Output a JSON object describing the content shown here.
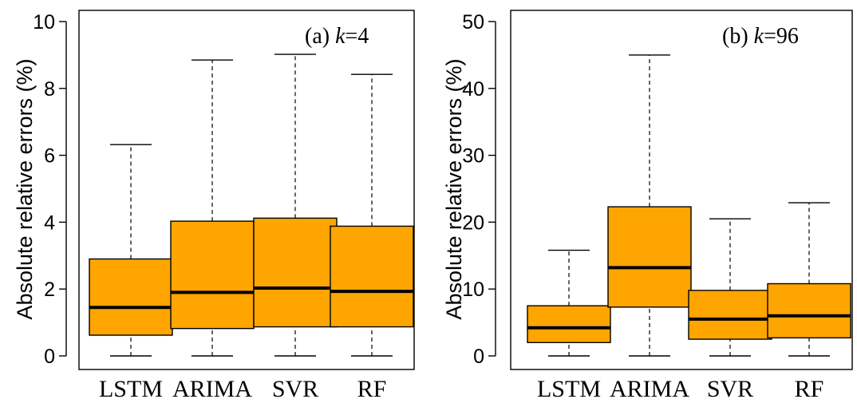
{
  "chart_data": [
    {
      "type": "box",
      "title_prefix": "(a)",
      "title_var": "k",
      "title_value": "=4",
      "ylabel": "Absolute relative errors (%)",
      "ylim": [
        0,
        10
      ],
      "yticks": [
        "0",
        "2",
        "4",
        "6",
        "8",
        "10"
      ],
      "categories": [
        "LSTM",
        "ARIMA",
        "SVR",
        "RF"
      ],
      "boxes": [
        {
          "min": 0,
          "q1": 0.62,
          "median": 1.45,
          "q3": 2.9,
          "max": 6.32
        },
        {
          "min": 0,
          "q1": 0.82,
          "median": 1.9,
          "q3": 4.03,
          "max": 8.85
        },
        {
          "min": 0,
          "q1": 0.87,
          "median": 2.03,
          "q3": 4.12,
          "max": 9.02
        },
        {
          "min": 0,
          "q1": 0.87,
          "median": 1.93,
          "q3": 3.88,
          "max": 8.42
        }
      ],
      "box_color": "#FFA500"
    },
    {
      "type": "box",
      "title_prefix": "(b)",
      "title_var": "k",
      "title_value": "=96",
      "ylabel": "Absolute relative errors (%)",
      "ylim": [
        0,
        50
      ],
      "yticks": [
        "0",
        "10",
        "20",
        "30",
        "40",
        "50"
      ],
      "categories": [
        "LSTM",
        "ARIMA",
        "SVR",
        "RF"
      ],
      "boxes": [
        {
          "min": 0,
          "q1": 2.0,
          "median": 4.2,
          "q3": 7.5,
          "max": 15.8
        },
        {
          "min": 0,
          "q1": 7.3,
          "median": 13.2,
          "q3": 22.3,
          "max": 45.0
        },
        {
          "min": 0,
          "q1": 2.5,
          "median": 5.5,
          "q3": 9.8,
          "max": 20.5
        },
        {
          "min": 0,
          "q1": 2.7,
          "median": 6.0,
          "q3": 10.8,
          "max": 22.9
        }
      ],
      "box_color": "#FFA500"
    }
  ]
}
